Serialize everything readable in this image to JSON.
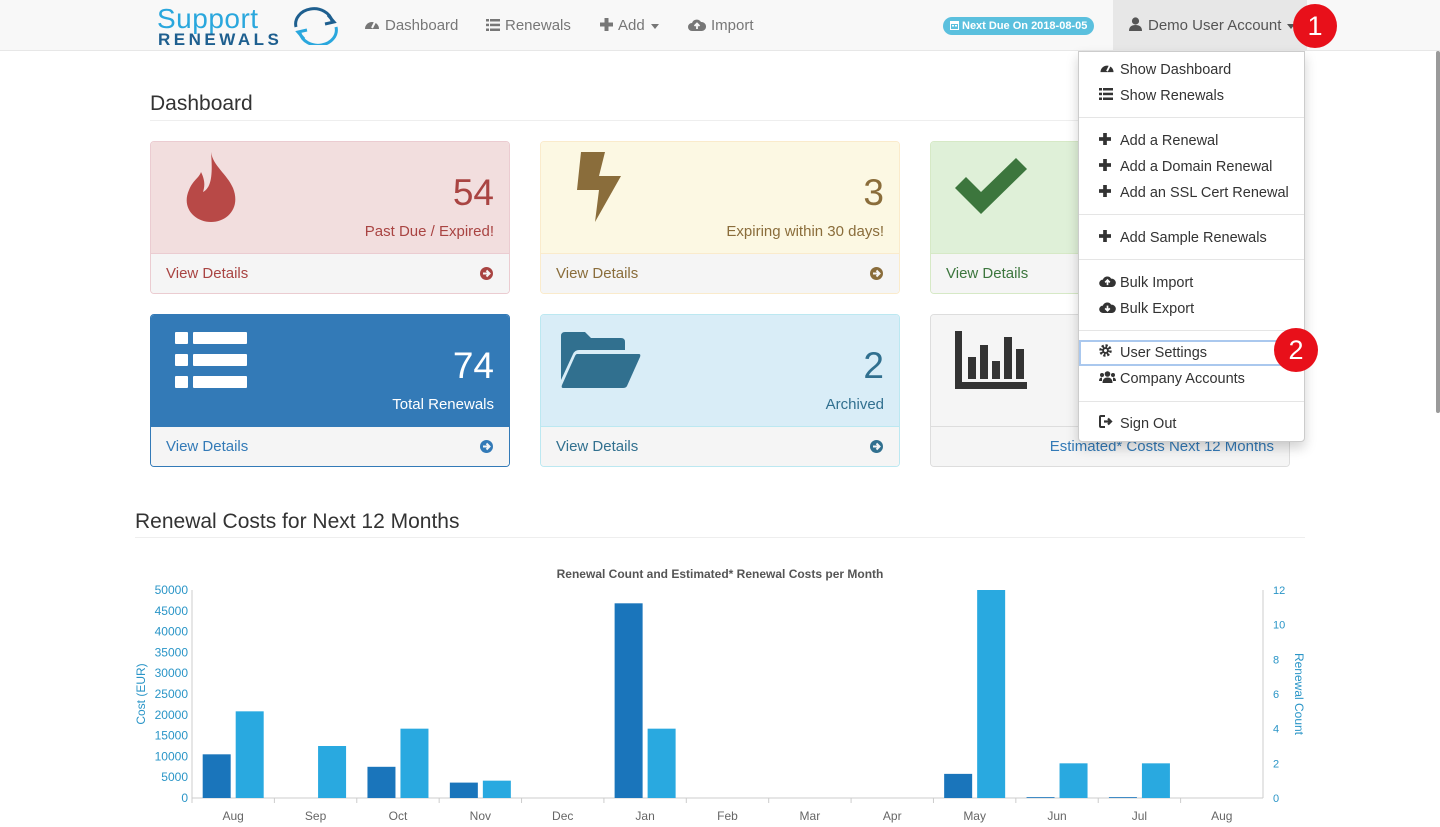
{
  "brand": {
    "word1": "Support",
    "word2": "RENEWALS"
  },
  "nav": {
    "dashboard": "Dashboard",
    "renewals": "Renewals",
    "add": "Add",
    "import": "Import",
    "due_badge": "Next Due On 2018-08-05",
    "account": "Demo User Account"
  },
  "steps": {
    "one": "1",
    "two": "2"
  },
  "page": {
    "title": "Dashboard",
    "chart_section_title": "Renewal Costs for Next 12 Months"
  },
  "panels": [
    {
      "number": "54",
      "label": "Past Due / Expired!",
      "link": "View Details",
      "icon": "fire-icon"
    },
    {
      "number": "3",
      "label": "Expiring within 30 days!",
      "link": "View Details",
      "icon": "bolt-icon"
    },
    {
      "number": "",
      "label": "",
      "link": "View Details",
      "icon": "check-icon"
    },
    {
      "number": "74",
      "label": "Total Renewals",
      "link": "View Details",
      "icon": "list-icon"
    },
    {
      "number": "2",
      "label": "Archived",
      "link": "View Details",
      "icon": "folder-open-icon"
    },
    {
      "number": "",
      "label": "",
      "link": "Estimated* Costs Next 12 Months",
      "icon": "bar-chart-icon"
    }
  ],
  "menu": [
    {
      "label": "Show Dashboard",
      "icon": "dashboard-icon"
    },
    {
      "label": "Show Renewals",
      "icon": "list-icon"
    },
    {
      "label": "Add a Renewal",
      "icon": "plus-icon"
    },
    {
      "label": "Add a Domain Renewal",
      "icon": "plus-icon"
    },
    {
      "label": "Add an SSL Cert Renewal",
      "icon": "plus-icon"
    },
    {
      "label": "Add Sample Renewals",
      "icon": "plus-icon"
    },
    {
      "label": "Bulk Import",
      "icon": "cloud-upload-icon"
    },
    {
      "label": "Bulk Export",
      "icon": "cloud-download-icon"
    },
    {
      "label": "User Settings",
      "icon": "gear-icon"
    },
    {
      "label": "Company Accounts",
      "icon": "users-icon"
    },
    {
      "label": "Sign Out",
      "icon": "sign-out-icon"
    }
  ],
  "colors": {
    "cost_bar": "#1a75bb",
    "count_bar": "#29a9e0",
    "axis": "#2a95c7"
  },
  "chart_data": {
    "type": "bar",
    "title": "Renewal Count and Estimated* Renewal Costs per Month",
    "categories": [
      "Aug",
      "Sep",
      "Oct",
      "Nov",
      "Dec",
      "Jan",
      "Feb",
      "Mar",
      "Apr",
      "May",
      "Jun",
      "Jul",
      "Aug"
    ],
    "ylabel": "Cost (EUR)",
    "y2label": "Renewal Count",
    "ylim": [
      0,
      50000
    ],
    "y2lim": [
      0,
      12
    ],
    "yticks": [
      "50000",
      "45000",
      "40000",
      "35000",
      "30000",
      "25000",
      "20000",
      "15000",
      "10000",
      "5000",
      "0"
    ],
    "y2ticks": [
      "12",
      "10",
      "8",
      "6",
      "4",
      "2",
      "0"
    ],
    "series": [
      {
        "values": [
          10500,
          0,
          7500,
          3700,
          0,
          46800,
          0,
          0,
          0,
          5800,
          200,
          200,
          0
        ],
        "axis": "left"
      },
      {
        "values": [
          5,
          3,
          4,
          1,
          0,
          4,
          0,
          0,
          0,
          12,
          2,
          2,
          0
        ],
        "axis": "right"
      }
    ],
    "grid": false
  }
}
